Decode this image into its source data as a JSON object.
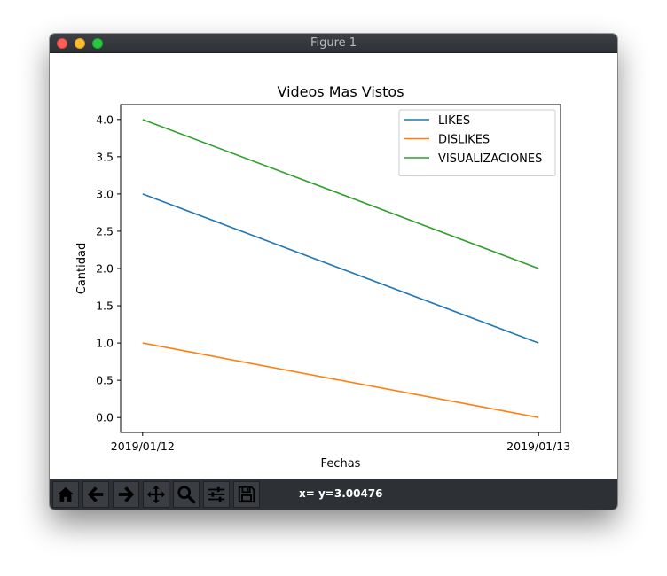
{
  "window": {
    "title": "Figure 1"
  },
  "toolbar": {
    "buttons": [
      {
        "name": "home-button",
        "icon": "home-icon"
      },
      {
        "name": "back-button",
        "icon": "arrow-left-icon"
      },
      {
        "name": "forward-button",
        "icon": "arrow-right-icon"
      },
      {
        "name": "pan-button",
        "icon": "move-icon"
      },
      {
        "name": "zoom-button",
        "icon": "search-icon"
      },
      {
        "name": "subplots-button",
        "icon": "sliders-icon"
      },
      {
        "name": "save-button",
        "icon": "save-icon"
      }
    ],
    "coordinates": "x= y=3.00476"
  },
  "chart_data": {
    "type": "line",
    "title": "Videos Mas Vistos",
    "xlabel": "Fechas",
    "ylabel": "Cantidad",
    "categories": [
      "2019/01/12",
      "2019/01/13"
    ],
    "series": [
      {
        "name": "LIKES",
        "values": [
          3,
          1
        ],
        "color": "#1f77b4"
      },
      {
        "name": "DISLIKES",
        "values": [
          1,
          0
        ],
        "color": "#ff7f0e"
      },
      {
        "name": "VISUALIZACIONES",
        "values": [
          4,
          2
        ],
        "color": "#2ca02c"
      }
    ],
    "ylim": [
      -0.2,
      4.2
    ],
    "yticks": [
      "0.0",
      "0.5",
      "1.0",
      "1.5",
      "2.0",
      "2.5",
      "3.0",
      "3.5",
      "4.0"
    ],
    "grid": false,
    "legend": "top-right"
  }
}
